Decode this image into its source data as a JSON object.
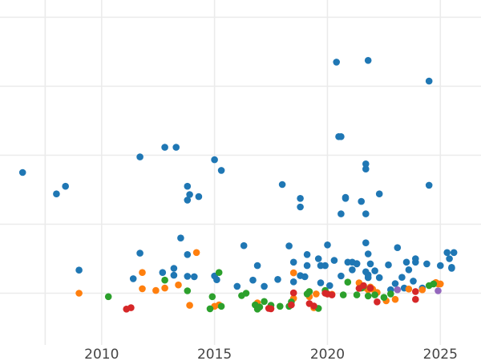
{
  "chart_data": {
    "type": "scatter",
    "title": "",
    "xlabel": "",
    "ylabel": "",
    "xlim": [
      2005.5,
      2026.8
    ],
    "ylim": [
      0,
      1000
    ],
    "grid": true,
    "legend": "none",
    "x_ticks": [
      2010,
      2015,
      2020,
      2025
    ],
    "y_gridlines": [
      150,
      350,
      550,
      750,
      950
    ],
    "series": [
      {
        "color": "#1f77b4",
        "points": [
          [
            2006.5,
            500
          ],
          [
            2008.0,
            438
          ],
          [
            2008.4,
            460
          ],
          [
            2009.0,
            217
          ],
          [
            2011.4,
            192
          ],
          [
            2011.7,
            266
          ],
          [
            2011.7,
            545
          ],
          [
            2012.7,
            210
          ],
          [
            2012.8,
            573
          ],
          [
            2013.2,
            222
          ],
          [
            2013.2,
            202
          ],
          [
            2013.3,
            573
          ],
          [
            2013.5,
            310
          ],
          [
            2013.8,
            262
          ],
          [
            2013.8,
            420
          ],
          [
            2013.8,
            460
          ],
          [
            2013.8,
            199
          ],
          [
            2013.9,
            436
          ],
          [
            2014.1,
            198
          ],
          [
            2014.3,
            430
          ],
          [
            2015.0,
            200
          ],
          [
            2015.0,
            537
          ],
          [
            2015.1,
            189
          ],
          [
            2015.3,
            506
          ],
          [
            2016.0,
            170
          ],
          [
            2016.3,
            288
          ],
          [
            2016.7,
            188
          ],
          [
            2016.9,
            230
          ],
          [
            2017.2,
            170
          ],
          [
            2017.8,
            190
          ],
          [
            2018.0,
            465
          ],
          [
            2018.3,
            287
          ],
          [
            2018.5,
            183
          ],
          [
            2018.5,
            240
          ],
          [
            2018.8,
            425
          ],
          [
            2018.8,
            400
          ],
          [
            2018.8,
            201
          ],
          [
            2019.0,
            198
          ],
          [
            2019.1,
            230
          ],
          [
            2019.1,
            262
          ],
          [
            2019.6,
            250
          ],
          [
            2019.7,
            230
          ],
          [
            2019.7,
            180
          ],
          [
            2019.9,
            230
          ],
          [
            2020.0,
            290
          ],
          [
            2020.1,
            172
          ],
          [
            2020.3,
            245
          ],
          [
            2020.4,
            820
          ],
          [
            2020.5,
            604
          ],
          [
            2020.6,
            604
          ],
          [
            2020.6,
            380
          ],
          [
            2020.6,
            200
          ],
          [
            2020.8,
            428
          ],
          [
            2020.8,
            425
          ],
          [
            2020.9,
            240
          ],
          [
            2021.1,
            240
          ],
          [
            2021.1,
            218
          ],
          [
            2021.3,
            235
          ],
          [
            2021.3,
            236
          ],
          [
            2021.5,
            416
          ],
          [
            2021.7,
            296
          ],
          [
            2021.7,
            380
          ],
          [
            2021.7,
            510
          ],
          [
            2021.7,
            525
          ],
          [
            2021.8,
            264
          ],
          [
            2021.8,
            825
          ],
          [
            2021.8,
            195
          ],
          [
            2021.8,
            203
          ],
          [
            2021.7,
            212
          ],
          [
            2021.9,
            235
          ],
          [
            2022.1,
            215
          ],
          [
            2022.3,
            438
          ],
          [
            2022.3,
            195
          ],
          [
            2022.7,
            232
          ],
          [
            2022.8,
            160
          ],
          [
            2023.0,
            178
          ],
          [
            2023.1,
            282
          ],
          [
            2023.3,
            196
          ],
          [
            2023.4,
            165
          ],
          [
            2023.5,
            240
          ],
          [
            2023.6,
            218
          ],
          [
            2023.8,
            185
          ],
          [
            2023.9,
            240
          ],
          [
            2023.9,
            250
          ],
          [
            2024.2,
            165
          ],
          [
            2024.4,
            235
          ],
          [
            2024.5,
            765
          ],
          [
            2024.5,
            463
          ],
          [
            2025.0,
            230
          ],
          [
            2025.3,
            268
          ],
          [
            2025.4,
            250
          ],
          [
            2025.5,
            225
          ],
          [
            2025.6,
            268
          ],
          [
            2025.5,
            222
          ]
        ]
      },
      {
        "color": "#ff7f0e",
        "points": [
          [
            2009.0,
            150
          ],
          [
            2011.8,
            210
          ],
          [
            2011.8,
            163
          ],
          [
            2012.4,
            158
          ],
          [
            2012.8,
            165
          ],
          [
            2013.4,
            174
          ],
          [
            2013.9,
            115
          ],
          [
            2014.2,
            268
          ],
          [
            2015.0,
            112
          ],
          [
            2015.2,
            116
          ],
          [
            2016.9,
            122
          ],
          [
            2018.5,
            209
          ],
          [
            2018.5,
            135
          ],
          [
            2019.2,
            140
          ],
          [
            2019.4,
            108
          ],
          [
            2019.5,
            148
          ],
          [
            2020.0,
            148
          ],
          [
            2020.2,
            147
          ],
          [
            2021.4,
            180
          ],
          [
            2021.5,
            168
          ],
          [
            2021.6,
            166
          ],
          [
            2021.8,
            160
          ],
          [
            2021.9,
            168
          ],
          [
            2022.0,
            162
          ],
          [
            2022.2,
            152
          ],
          [
            2022.6,
            128
          ],
          [
            2023.0,
            132
          ],
          [
            2023.6,
            162
          ],
          [
            2024.2,
            160
          ],
          [
            2024.8,
            181
          ],
          [
            2024.9,
            177
          ],
          [
            2025.0,
            177
          ]
        ]
      },
      {
        "color": "#2ca02c",
        "points": [
          [
            2010.3,
            140
          ],
          [
            2012.8,
            188
          ],
          [
            2013.8,
            157
          ],
          [
            2014.8,
            105
          ],
          [
            2014.9,
            140
          ],
          [
            2015.2,
            210
          ],
          [
            2015.3,
            112
          ],
          [
            2016.2,
            143
          ],
          [
            2016.4,
            150
          ],
          [
            2016.8,
            116
          ],
          [
            2016.9,
            104
          ],
          [
            2017.0,
            110
          ],
          [
            2017.2,
            126
          ],
          [
            2017.5,
            115
          ],
          [
            2017.9,
            112
          ],
          [
            2018.3,
            112
          ],
          [
            2018.4,
            125
          ],
          [
            2019.1,
            148
          ],
          [
            2019.2,
            155
          ],
          [
            2019.6,
            106
          ],
          [
            2019.9,
            158
          ],
          [
            2020.7,
            145
          ],
          [
            2020.9,
            182
          ],
          [
            2021.3,
            145
          ],
          [
            2021.5,
            165
          ],
          [
            2021.6,
            170
          ],
          [
            2021.8,
            142
          ],
          [
            2022.1,
            145
          ],
          [
            2022.5,
            138
          ],
          [
            2022.8,
            148
          ],
          [
            2024.5,
            172
          ],
          [
            2024.7,
            177
          ]
        ]
      },
      {
        "color": "#d62728",
        "points": [
          [
            2011.1,
            104
          ],
          [
            2011.3,
            108
          ],
          [
            2017.4,
            106
          ],
          [
            2017.5,
            105
          ],
          [
            2018.4,
            116
          ],
          [
            2018.5,
            151
          ],
          [
            2019.2,
            120
          ],
          [
            2019.4,
            113
          ],
          [
            2019.9,
            150
          ],
          [
            2020.0,
            148
          ],
          [
            2020.2,
            145
          ],
          [
            2021.4,
            164
          ],
          [
            2021.6,
            172
          ],
          [
            2021.9,
            165
          ],
          [
            2022.2,
            125
          ],
          [
            2023.9,
            155
          ],
          [
            2023.9,
            132
          ]
        ]
      },
      {
        "color": "#9467bd",
        "points": [
          [
            2023.1,
            160
          ],
          [
            2024.9,
            157
          ]
        ]
      }
    ]
  }
}
